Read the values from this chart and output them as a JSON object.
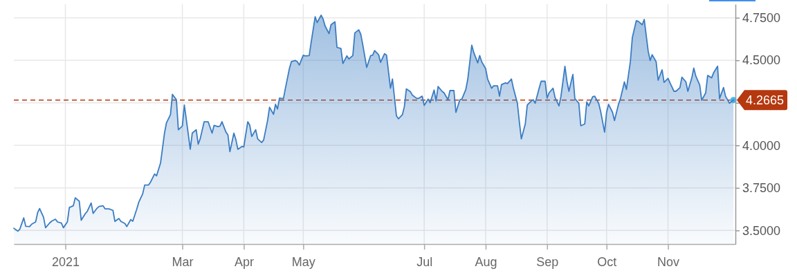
{
  "chart_data": {
    "type": "area",
    "x": [
      "2020-12-06",
      "2020-12-08",
      "2020-12-09",
      "2020-12-11",
      "2020-12-12",
      "2020-12-14",
      "2020-12-15",
      "2020-12-17",
      "2020-12-18",
      "2020-12-19",
      "2020-12-21",
      "2020-12-22",
      "2020-12-24",
      "2020-12-25",
      "2020-12-27",
      "2020-12-28",
      "2020-12-30",
      "2020-12-31",
      "2021-01-02",
      "2021-01-03",
      "2021-01-05",
      "2021-01-06",
      "2021-01-08",
      "2021-01-09",
      "2021-01-11",
      "2021-01-12",
      "2021-01-14",
      "2021-01-15",
      "2021-01-17",
      "2021-01-18",
      "2021-01-20",
      "2021-01-21",
      "2021-01-23",
      "2021-01-25",
      "2021-01-26",
      "2021-01-28",
      "2021-01-29",
      "2021-01-31",
      "2021-02-01",
      "2021-02-03",
      "2021-02-04",
      "2021-02-06",
      "2021-02-07",
      "2021-02-09",
      "2021-02-10",
      "2021-02-12",
      "2021-02-13",
      "2021-02-15",
      "2021-02-16",
      "2021-02-18",
      "2021-02-20",
      "2021-02-21",
      "2021-02-23",
      "2021-02-24",
      "2021-02-26",
      "2021-02-27",
      "2021-03-01",
      "2021-03-02",
      "2021-03-03",
      "2021-03-05",
      "2021-03-06",
      "2021-03-08",
      "2021-03-09",
      "2021-03-10",
      "2021-03-12",
      "2021-03-13",
      "2021-03-14",
      "2021-03-16",
      "2021-03-17",
      "2021-03-19",
      "2021-03-20",
      "2021-03-21",
      "2021-03-23",
      "2021-03-24",
      "2021-03-25",
      "2021-03-27",
      "2021-03-28",
      "2021-03-29",
      "2021-03-31",
      "2021-04-01",
      "2021-04-03",
      "2021-04-04",
      "2021-04-05",
      "2021-04-07",
      "2021-04-08",
      "2021-04-10",
      "2021-04-11",
      "2021-04-13",
      "2021-04-14",
      "2021-04-16",
      "2021-04-17",
      "2021-04-18",
      "2021-04-19",
      "2021-04-21",
      "2021-04-22",
      "2021-04-24",
      "2021-04-25",
      "2021-04-27",
      "2021-04-28",
      "2021-04-29",
      "2021-05-01",
      "2021-05-02",
      "2021-05-04",
      "2021-05-05",
      "2021-05-07",
      "2021-05-08",
      "2021-05-10",
      "2021-05-11",
      "2021-05-12",
      "2021-05-14",
      "2021-05-15",
      "2021-05-17",
      "2021-05-18",
      "2021-05-20",
      "2021-05-21",
      "2021-05-23",
      "2021-05-24",
      "2021-05-26",
      "2021-05-27",
      "2021-05-29",
      "2021-05-30",
      "2021-05-31",
      "2021-06-02",
      "2021-06-04",
      "2021-06-05",
      "2021-06-06",
      "2021-06-08",
      "2021-06-09",
      "2021-06-11",
      "2021-06-12",
      "2021-06-14",
      "2021-06-15",
      "2021-06-17",
      "2021-06-18",
      "2021-06-20",
      "2021-06-21",
      "2021-06-22",
      "2021-06-24",
      "2021-06-25",
      "2021-06-27",
      "2021-06-28",
      "2021-06-30",
      "2021-07-01",
      "2021-07-03",
      "2021-07-04",
      "2021-07-06",
      "2021-07-07",
      "2021-07-08",
      "2021-07-10",
      "2021-07-11",
      "2021-07-13",
      "2021-07-14",
      "2021-07-16",
      "2021-07-17",
      "2021-07-19",
      "2021-07-20",
      "2021-07-22",
      "2021-07-23",
      "2021-07-25",
      "2021-07-26",
      "2021-07-28",
      "2021-07-29",
      "2021-07-30",
      "2021-08-01",
      "2021-08-02",
      "2021-08-04",
      "2021-08-05",
      "2021-08-07",
      "2021-08-08",
      "2021-08-09",
      "2021-08-11",
      "2021-08-12",
      "2021-08-14",
      "2021-08-15",
      "2021-08-17",
      "2021-08-18",
      "2021-08-19",
      "2021-08-21",
      "2021-08-22",
      "2021-08-24",
      "2021-08-25",
      "2021-08-26",
      "2021-08-28",
      "2021-08-29",
      "2021-08-31",
      "2021-09-01",
      "2021-09-02",
      "2021-09-04",
      "2021-09-05",
      "2021-09-07",
      "2021-09-08",
      "2021-09-10",
      "2021-09-11",
      "2021-09-12",
      "2021-09-14",
      "2021-09-15",
      "2021-09-17",
      "2021-09-18",
      "2021-09-20",
      "2021-09-21",
      "2021-09-22",
      "2021-09-24",
      "2021-09-25",
      "2021-09-27",
      "2021-09-28",
      "2021-09-30",
      "2021-10-01",
      "2021-10-02",
      "2021-10-04",
      "2021-10-05",
      "2021-10-07",
      "2021-10-08",
      "2021-10-10",
      "2021-10-11",
      "2021-10-13",
      "2021-10-14",
      "2021-10-16",
      "2021-10-17",
      "2021-10-19",
      "2021-10-20",
      "2021-10-22",
      "2021-10-23",
      "2021-10-24",
      "2021-10-26",
      "2021-10-27",
      "2021-10-29",
      "2021-10-30",
      "2021-11-01",
      "2021-11-02",
      "2021-11-04",
      "2021-11-05",
      "2021-11-07",
      "2021-11-08",
      "2021-11-10",
      "2021-11-11",
      "2021-11-13",
      "2021-11-14",
      "2021-11-15",
      "2021-11-17",
      "2021-11-18",
      "2021-11-20",
      "2021-11-21",
      "2021-11-23",
      "2021-11-24",
      "2021-11-26",
      "2021-11-27",
      "2021-11-29",
      "2021-11-30",
      "2021-12-02",
      "2021-12-04"
    ],
    "series": [
      {
        "color": "#3a7cc2",
        "values": [
          3.513,
          3.496,
          3.507,
          3.574,
          3.524,
          3.523,
          3.537,
          3.55,
          3.604,
          3.629,
          3.577,
          3.516,
          3.543,
          3.554,
          3.566,
          3.55,
          3.543,
          3.516,
          3.55,
          3.635,
          3.645,
          3.692,
          3.672,
          3.56,
          3.598,
          3.611,
          3.661,
          3.6,
          3.631,
          3.641,
          3.645,
          3.627,
          3.627,
          3.618,
          3.553,
          3.57,
          3.553,
          3.541,
          3.523,
          3.564,
          3.554,
          3.625,
          3.665,
          3.715,
          3.767,
          3.767,
          3.785,
          3.832,
          3.821,
          3.896,
          4.072,
          4.133,
          4.18,
          4.3,
          4.268,
          4.092,
          4.113,
          4.237,
          4.153,
          3.977,
          4.072,
          4.092,
          4.007,
          4.038,
          4.139,
          4.139,
          4.139,
          4.072,
          4.117,
          4.11,
          4.113,
          4.139,
          4.078,
          4.061,
          3.963,
          4.072,
          4.034,
          3.977,
          3.993,
          3.991,
          4.139,
          4.119,
          4.052,
          4.092,
          4.038,
          4.017,
          4.031,
          4.146,
          4.224,
          4.183,
          4.241,
          4.214,
          4.278,
          4.275,
          4.336,
          4.451,
          4.492,
          4.499,
          4.492,
          4.472,
          4.53,
          4.526,
          4.528,
          4.607,
          4.756,
          4.722,
          4.765,
          4.743,
          4.702,
          4.657,
          4.709,
          4.726,
          4.576,
          4.569,
          4.481,
          4.526,
          4.508,
          4.528,
          4.661,
          4.679,
          4.654,
          4.593,
          4.458,
          4.528,
          4.53,
          4.557,
          4.533,
          4.488,
          4.539,
          4.53,
          4.336,
          4.39,
          4.174,
          4.156,
          4.18,
          4.228,
          4.332,
          4.316,
          4.296,
          4.278,
          4.275,
          4.289,
          4.235,
          4.272,
          4.251,
          4.325,
          4.261,
          4.346,
          4.318,
          4.309,
          4.268,
          4.322,
          4.322,
          4.194,
          4.268,
          4.272,
          4.329,
          4.39,
          4.589,
          4.546,
          4.485,
          4.528,
          4.492,
          4.451,
          4.39,
          4.336,
          4.35,
          4.35,
          4.289,
          4.357,
          4.367,
          4.363,
          4.39,
          4.336,
          4.248,
          4.139,
          4.038,
          4.126,
          4.237,
          4.261,
          4.268,
          4.248,
          4.336,
          4.377,
          4.377,
          4.278,
          4.309,
          4.336,
          4.282,
          4.232,
          4.289,
          4.465,
          4.377,
          4.318,
          4.417,
          4.275,
          4.248,
          4.115,
          4.126,
          4.255,
          4.232,
          4.286,
          4.289,
          4.248,
          4.2,
          4.078,
          4.194,
          4.241,
          4.194,
          4.146,
          4.241,
          4.275,
          4.373,
          4.329,
          4.492,
          4.634,
          4.733,
          4.729,
          4.709,
          4.74,
          4.553,
          4.499,
          4.533,
          4.492,
          4.383,
          4.444,
          4.37,
          4.394,
          4.367,
          4.318,
          4.318,
          4.339,
          4.401,
          4.374,
          4.318,
          4.397,
          4.454,
          4.408,
          4.354,
          4.265,
          4.309,
          4.411,
          4.397,
          4.427,
          4.465,
          4.275,
          4.34,
          4.289,
          4.248,
          4.2665
        ]
      },
      {
        "type": "scatter",
        "x": [
          "2021-12-04"
        ],
        "values": [
          4.2665
        ],
        "color": "#3fb6f4"
      }
    ],
    "xlim": [
      "2020-12-06",
      "2021-12-05"
    ],
    "xticks": [
      {
        "value": "2021-01-01",
        "label": "2021"
      },
      {
        "value": "2021-03-01",
        "label": "Mar"
      },
      {
        "value": "2021-04-01",
        "label": "Apr"
      },
      {
        "value": "2021-05-01",
        "label": "May"
      },
      {
        "value": "2021-07-01",
        "label": "Jul"
      },
      {
        "value": "2021-08-01",
        "label": "Aug"
      },
      {
        "value": "2021-09-01",
        "label": "Sep"
      },
      {
        "value": "2021-10-01",
        "label": "Oct"
      },
      {
        "value": "2021-11-01",
        "label": "Nov"
      }
    ],
    "ylim": [
      3.42,
      4.83
    ],
    "yticks": [
      {
        "value": 3.5,
        "label": "3.5000"
      },
      {
        "value": 3.75,
        "label": "3.7500"
      },
      {
        "value": 4,
        "label": "4.0000"
      },
      {
        "value": 4.25,
        "label": null
      },
      {
        "value": 4.5,
        "label": "4.5000"
      },
      {
        "value": 4.75,
        "label": "4.7500"
      }
    ],
    "grid": true,
    "ref_lines": [
      {
        "axis": "y",
        "value": 4.2665,
        "label": "4.2665",
        "color": "#b5380f",
        "line_style": "dashed"
      }
    ]
  }
}
